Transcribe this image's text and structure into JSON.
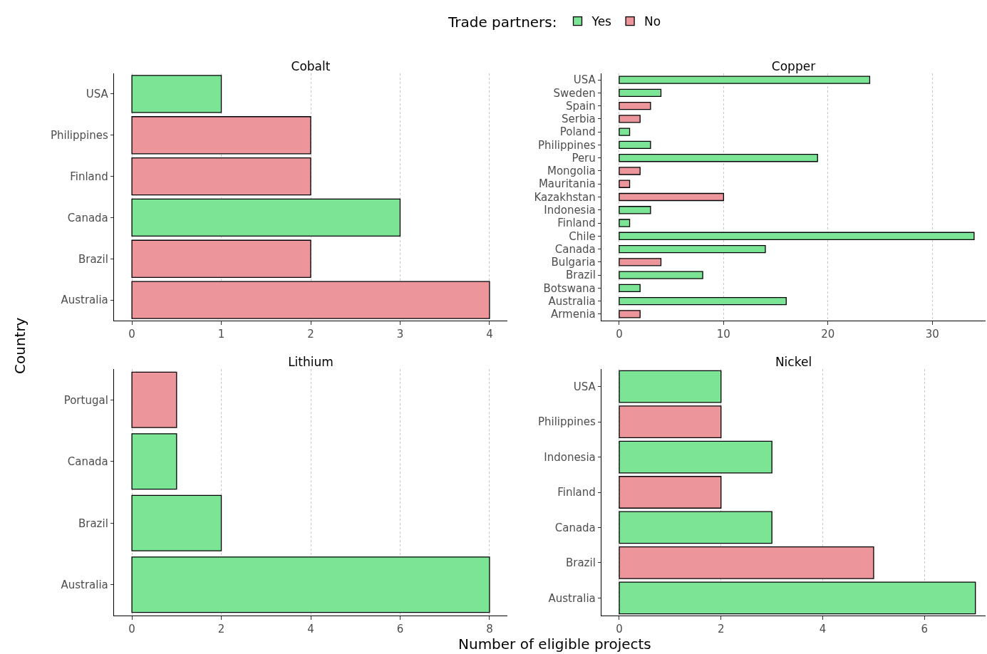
{
  "chart_data": [
    {
      "type": "bar",
      "orientation": "horizontal",
      "title": "Cobalt",
      "ylabel": "Country",
      "legend_title": "Trade partners:",
      "legend": "top",
      "grid": "x",
      "categories": [
        "USA",
        "Philippines",
        "Finland",
        "Canada",
        "Brazil",
        "Australia"
      ],
      "series": [
        {
          "name": "Yes",
          "color": "#7be495",
          "values": [
            1,
            null,
            null,
            3,
            null,
            null
          ]
        },
        {
          "name": "No",
          "color": "#ec969c",
          "values": [
            null,
            2,
            2,
            null,
            2,
            4
          ]
        }
      ],
      "xlim": [
        -0.2,
        4.2
      ],
      "xticks": [
        0,
        1,
        2,
        3,
        4
      ]
    },
    {
      "type": "bar",
      "orientation": "horizontal",
      "title": "Copper",
      "grid": "x",
      "categories": [
        "USA",
        "Sweden",
        "Spain",
        "Serbia",
        "Poland",
        "Philippines",
        "Peru",
        "Mongolia",
        "Mauritania",
        "Kazakhstan",
        "Indonesia",
        "Finland",
        "Chile",
        "Canada",
        "Bulgaria",
        "Brazil",
        "Botswana",
        "Australia",
        "Armenia"
      ],
      "series": [
        {
          "color": "#7be495",
          "values": [
            24,
            4,
            null,
            null,
            1,
            3,
            19,
            null,
            null,
            null,
            3,
            1,
            34,
            14,
            null,
            8,
            2,
            16,
            null
          ]
        },
        {
          "color": "#ec969c",
          "values": [
            null,
            null,
            3,
            2,
            null,
            null,
            null,
            2,
            1,
            10,
            null,
            null,
            null,
            null,
            4,
            null,
            null,
            null,
            2
          ]
        }
      ],
      "xlim": [
        -1.7,
        35.1
      ],
      "xticks": [
        0,
        10,
        20,
        30
      ]
    },
    {
      "type": "bar",
      "orientation": "horizontal",
      "title": "Lithium",
      "xlabel": "Number of eligible projects",
      "grid": "x",
      "categories": [
        "Portugal",
        "Canada",
        "Brazil",
        "Australia"
      ],
      "series": [
        {
          "color": "#7be495",
          "values": [
            null,
            1,
            2,
            8
          ]
        },
        {
          "color": "#ec969c",
          "values": [
            1,
            null,
            null,
            null
          ]
        }
      ],
      "xlim": [
        -0.4,
        8.4
      ],
      "xticks": [
        0,
        2,
        4,
        6,
        8
      ]
    },
    {
      "type": "bar",
      "orientation": "horizontal",
      "title": "Nickel",
      "grid": "x",
      "categories": [
        "USA",
        "Philippines",
        "Indonesia",
        "Finland",
        "Canada",
        "Brazil",
        "Australia"
      ],
      "series": [
        {
          "color": "#7be495",
          "values": [
            2,
            null,
            3,
            null,
            3,
            null,
            7
          ]
        },
        {
          "color": "#ec969c",
          "values": [
            null,
            2,
            null,
            2,
            null,
            5,
            null
          ]
        }
      ],
      "xlim": [
        -0.35,
        7.2
      ],
      "xticks": [
        0,
        2,
        4,
        6
      ]
    }
  ]
}
